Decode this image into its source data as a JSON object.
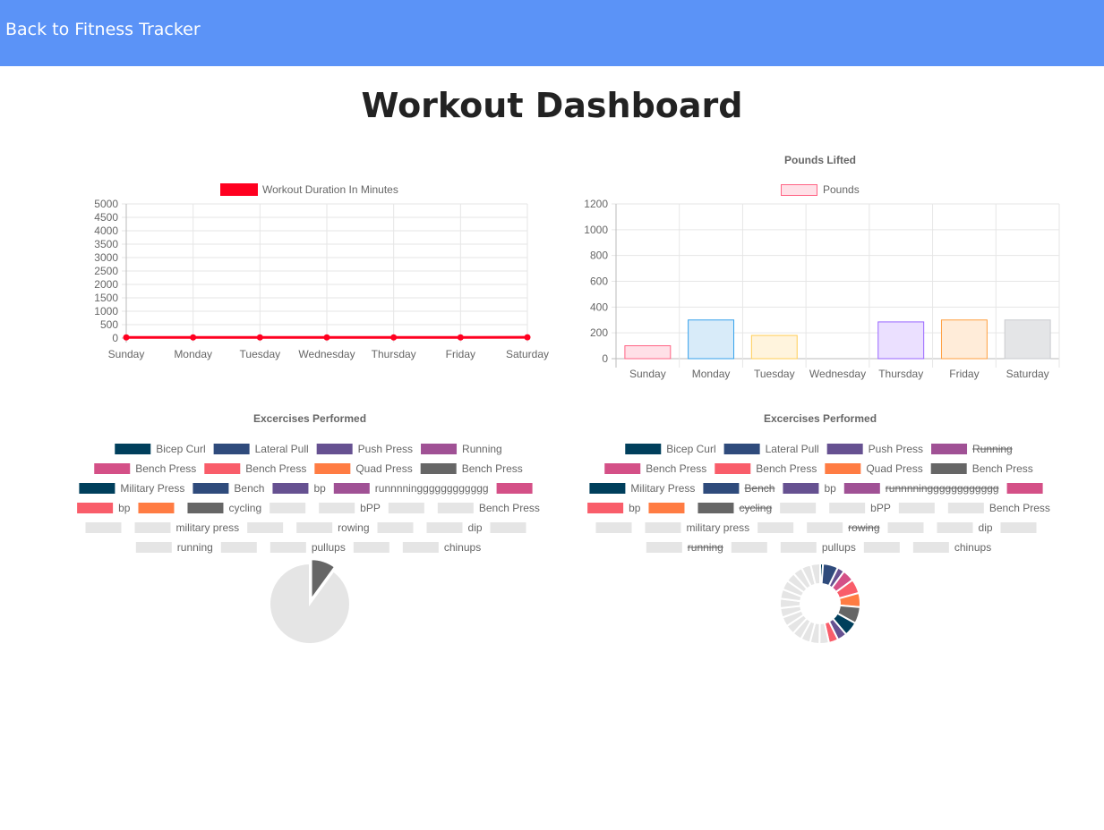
{
  "nav": {
    "back_label": "Back to Fitness Tracker"
  },
  "page": {
    "title": "Workout Dashboard"
  },
  "chart_data": [
    {
      "type": "line",
      "title": "",
      "categories": [
        "Sunday",
        "Monday",
        "Tuesday",
        "Wednesday",
        "Thursday",
        "Friday",
        "Saturday"
      ],
      "series": [
        {
          "name": "Workout Duration In Minutes",
          "values": [
            25,
            25,
            25,
            25,
            25,
            25,
            30
          ],
          "color": "#ff0020"
        }
      ],
      "yticks": [
        0,
        500,
        1000,
        1500,
        2000,
        2500,
        3000,
        3500,
        4000,
        4500,
        5000
      ],
      "ylim": [
        0,
        5000
      ],
      "grid": true,
      "legend": "top"
    },
    {
      "type": "bar",
      "title": "Pounds Lifted",
      "categories": [
        "Sunday",
        "Monday",
        "Tuesday",
        "Wednesday",
        "Thursday",
        "Friday",
        "Saturday"
      ],
      "series": [
        {
          "name": "Pounds",
          "values": [
            100,
            300,
            180,
            0,
            285,
            300,
            300
          ]
        }
      ],
      "bar_fills": [
        "#ffe0e7",
        "#d8ebf9",
        "#fff4dd",
        "#e6f6f6",
        "#ebe0ff",
        "#ffecd9",
        "#e4e5e7"
      ],
      "bar_strokes": [
        "#ff6384",
        "#36a2eb",
        "#ffce56",
        "#4bc0c0",
        "#9966ff",
        "#ff9f40",
        "#c9cbcf"
      ],
      "legend_fill": "#ffe0e7",
      "legend_stroke": "#ff6384",
      "yticks": [
        0,
        200,
        400,
        600,
        800,
        1000,
        1200
      ],
      "ylim": [
        0,
        1200
      ],
      "grid": true,
      "legend": "top"
    },
    {
      "type": "pie",
      "title": "Excercises Performed",
      "labels": [
        "Bicep Curl",
        "Lateral Pull",
        "Push Press",
        "Running",
        "Bench Press",
        "Bench Press",
        "Quad Press",
        "Bench Press",
        "Military Press",
        "Bench",
        "bp",
        "runnnningggggggggggg",
        "",
        "bp",
        "",
        "cycling",
        "",
        "bPP",
        "",
        "Bench Press",
        "",
        "military press",
        "",
        "rowing",
        "",
        "dip",
        "",
        "running",
        "",
        "pullups",
        "",
        "chinups"
      ],
      "colors": [
        "#003f5c",
        "#2f4b7c",
        "#665191",
        "#a05195",
        "#d45087",
        "#f95d6a",
        "#ff7c43",
        "#666666",
        "#003f5c",
        "#2f4b7c",
        "#665191",
        "#a05195",
        "#d45087",
        "#f95d6a",
        "#ff7c43",
        "#666666",
        "#e5e5e5",
        "#e5e5e5",
        "#e5e5e5",
        "#e5e5e5",
        "#e5e5e5",
        "#e5e5e5",
        "#e5e5e5",
        "#e5e5e5",
        "#e5e5e5",
        "#e5e5e5",
        "#e5e5e5",
        "#e5e5e5",
        "#e5e5e5",
        "#e5e5e5",
        "#e5e5e5",
        "#e5e5e5"
      ],
      "values": [
        0,
        0,
        0,
        0,
        0,
        0,
        0,
        10,
        0,
        0,
        0,
        0,
        0,
        0,
        0,
        0,
        90,
        0,
        0,
        0,
        0,
        0,
        0,
        0,
        0,
        0,
        0,
        0,
        0,
        0,
        0,
        0
      ],
      "hidden": [],
      "legend": "top"
    },
    {
      "type": "doughnut",
      "title": "Excercises Performed",
      "labels": [
        "Bicep Curl",
        "Lateral Pull",
        "Push Press",
        "Running",
        "Bench Press",
        "Bench Press",
        "Quad Press",
        "Bench Press",
        "Military Press",
        "Bench",
        "bp",
        "runnnningggggggggggg",
        "",
        "bp",
        "",
        "cycling",
        "",
        "bPP",
        "",
        "Bench Press",
        "",
        "military press",
        "",
        "rowing",
        "",
        "dip",
        "",
        "running",
        "",
        "pullups",
        "",
        "chinups"
      ],
      "colors": [
        "#003f5c",
        "#2f4b7c",
        "#665191",
        "#a05195",
        "#d45087",
        "#f95d6a",
        "#ff7c43",
        "#666666",
        "#003f5c",
        "#2f4b7c",
        "#665191",
        "#a05195",
        "#d45087",
        "#f95d6a",
        "#ff7c43",
        "#666666",
        "#e5e5e5",
        "#e5e5e5",
        "#e5e5e5",
        "#e5e5e5",
        "#e5e5e5",
        "#e5e5e5",
        "#e5e5e5",
        "#e5e5e5",
        "#e5e5e5",
        "#e5e5e5",
        "#e5e5e5",
        "#e5e5e5",
        "#e5e5e5",
        "#e5e5e5",
        "#e5e5e5",
        "#e5e5e5"
      ],
      "values": [
        0.6,
        3.2,
        1.5,
        0,
        2.5,
        3,
        3,
        3.5,
        3,
        2,
        2,
        0,
        0,
        2,
        0,
        0,
        2,
        2,
        2,
        2,
        2,
        2,
        2,
        0,
        2,
        2,
        2,
        0,
        2,
        2,
        2,
        2
      ],
      "hidden": [
        3,
        9,
        11,
        15,
        23,
        27
      ],
      "legend": "top"
    }
  ]
}
